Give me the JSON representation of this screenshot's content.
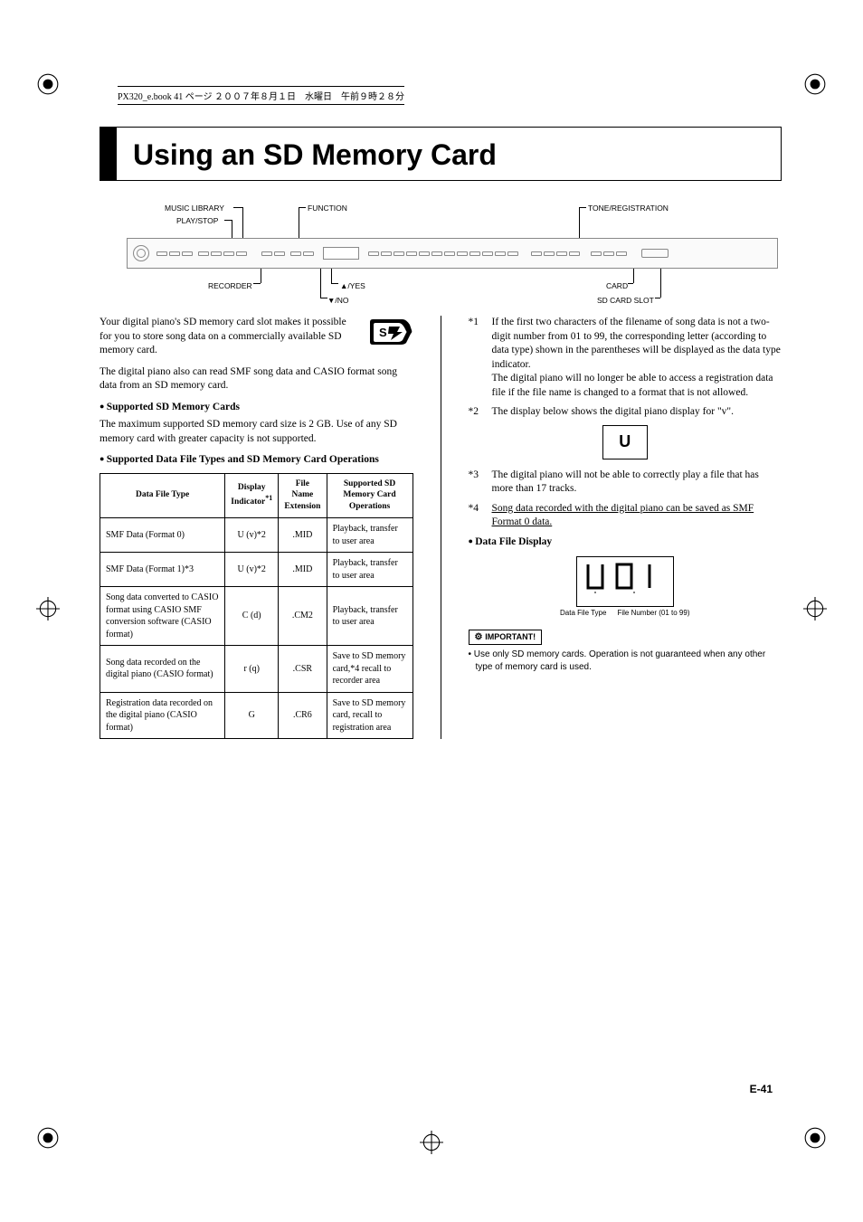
{
  "header_line": "PX320_e.book  41 ページ  ２００７年８月１日　水曜日　午前９時２８分",
  "title": "Using an SD Memory Card",
  "diagram": {
    "top_labels": {
      "music_library": "MUSIC LIBRARY",
      "play_stop": "PLAY/STOP",
      "function": "FUNCTION",
      "tone_registration": "TONE/REGISTRATION"
    },
    "bottom_labels": {
      "recorder": "RECORDER",
      "up_yes": "▲/YES",
      "down_no": "▼/NO",
      "card": "CARD",
      "sd_card_slot": "SD CARD SLOT"
    }
  },
  "intro": {
    "p1": "Your digital piano's SD memory card slot makes it possible for you to store song data on a commercially available SD memory card.",
    "p2": "The digital piano also can read SMF song data and CASIO format song data from an SD memory card."
  },
  "sections": {
    "supported_cards_head": "Supported SD Memory Cards",
    "supported_cards_body": "The maximum supported SD memory card size is 2 GB. Use of any SD memory card with greater capacity is not supported.",
    "supported_types_head": "Supported Data File Types and SD Memory Card Operations",
    "data_file_display_head": "Data File Display"
  },
  "table": {
    "headers": {
      "c1": "Data File Type",
      "c2a": "Display",
      "c2b": "Indicator",
      "c2sup": "*1",
      "c3a": "File Name",
      "c3b": "Extension",
      "c4a": "Supported SD",
      "c4b": "Memory Card",
      "c4c": "Operations"
    },
    "rows": [
      {
        "c1": "SMF Data (Format 0)",
        "c2": "U (v)*2",
        "c3": ".MID",
        "c4": "Playback, transfer to user area"
      },
      {
        "c1": "SMF Data (Format 1)*3",
        "c2": "U (v)*2",
        "c3": ".MID",
        "c4": "Playback, transfer to user area"
      },
      {
        "c1": "Song data converted to CASIO format using CASIO SMF conversion software (CASIO format)",
        "c2": "C (d)",
        "c3": ".CM2",
        "c4": "Playback, transfer to user area"
      },
      {
        "c1": "Song data recorded on the digital piano (CASIO format)",
        "c2": "r (q)",
        "c3": ".CSR",
        "c4": "Save to SD memory card,*4 recall to recorder area"
      },
      {
        "c1": "Registration data recorded on the digital piano (CASIO format)",
        "c2": "G",
        "c3": ".CR6",
        "c4": "Save to SD memory card, recall to registration area"
      }
    ]
  },
  "footnotes": {
    "f1_num": "*1",
    "f1a": "If the first two characters of the filename of song data is not a two-digit number from 01 to 99, the corresponding letter (according to data type) shown in the parentheses will be displayed as the data type indicator.",
    "f1b": "The digital piano will no longer be able to access a registration data file if the file name is changed to a format that is not allowed.",
    "f2_num": "*2",
    "f2": "The display below shows the digital piano display for \"v\".",
    "f2_display": "U",
    "f3_num": "*3",
    "f3": "The digital piano will not be able to correctly play a file that has more than 17 tracks.",
    "f4_num": "*4",
    "f4": "Song data recorded with the digital piano can be saved as SMF Format 0 data."
  },
  "seg_display": {
    "value": "U 0 1",
    "label_left": "Data File Type",
    "label_right": "File Number (01 to 99)"
  },
  "important": {
    "tag": "IMPORTANT!",
    "text": "Use only SD memory cards. Operation is not guaranteed when any other type of memory card is used."
  },
  "page_number": "E-41",
  "colors": {
    "black": "#000000",
    "white": "#ffffff",
    "gray": "#888888"
  }
}
